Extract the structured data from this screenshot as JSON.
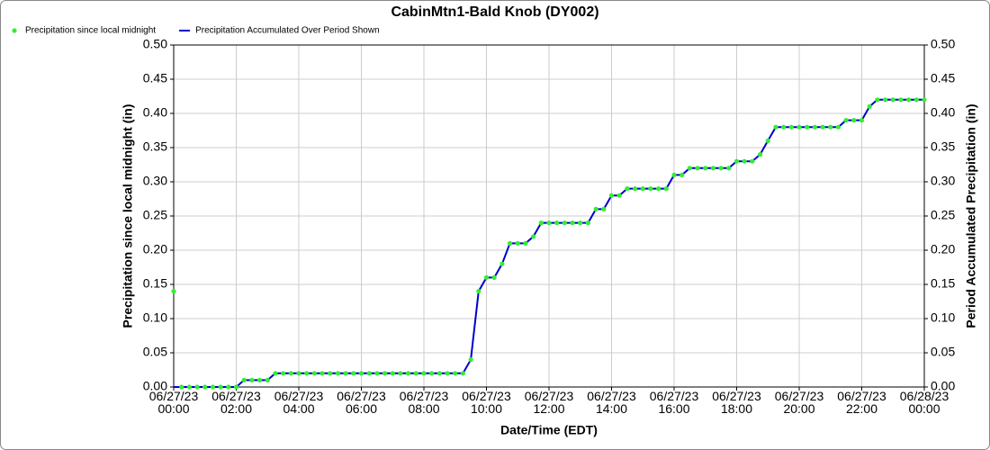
{
  "chart_data": {
    "type": "line",
    "title": "CabinMtn1-Bald Knob (DY002)",
    "xlabel": "Date/Time (EDT)",
    "ylabel": "Precipitation since local midnight (in)",
    "y2label": "Period Accumulated Precipitation (in)",
    "grid": true,
    "legend": "top-left",
    "x": [
      "06/27/23 00:00",
      "06/27/23 00:15",
      "06/27/23 00:30",
      "06/27/23 00:45",
      "06/27/23 01:00",
      "06/27/23 01:15",
      "06/27/23 01:30",
      "06/27/23 01:45",
      "06/27/23 02:00",
      "06/27/23 02:15",
      "06/27/23 02:30",
      "06/27/23 02:45",
      "06/27/23 03:00",
      "06/27/23 03:15",
      "06/27/23 03:30",
      "06/27/23 03:45",
      "06/27/23 04:00",
      "06/27/23 04:15",
      "06/27/23 04:30",
      "06/27/23 04:45",
      "06/27/23 05:00",
      "06/27/23 05:15",
      "06/27/23 05:30",
      "06/27/23 05:45",
      "06/27/23 06:00",
      "06/27/23 06:15",
      "06/27/23 06:30",
      "06/27/23 06:45",
      "06/27/23 07:00",
      "06/27/23 07:15",
      "06/27/23 07:30",
      "06/27/23 07:45",
      "06/27/23 08:00",
      "06/27/23 08:15",
      "06/27/23 08:30",
      "06/27/23 08:45",
      "06/27/23 09:00",
      "06/27/23 09:15",
      "06/27/23 09:30",
      "06/27/23 09:45",
      "06/27/23 10:00",
      "06/27/23 10:15",
      "06/27/23 10:30",
      "06/27/23 10:45",
      "06/27/23 11:00",
      "06/27/23 11:15",
      "06/27/23 11:30",
      "06/27/23 11:45",
      "06/27/23 12:00",
      "06/27/23 12:15",
      "06/27/23 12:30",
      "06/27/23 12:45",
      "06/27/23 13:00",
      "06/27/23 13:15",
      "06/27/23 13:30",
      "06/27/23 13:45",
      "06/27/23 14:00",
      "06/27/23 14:15",
      "06/27/23 14:30",
      "06/27/23 14:45",
      "06/27/23 15:00",
      "06/27/23 15:15",
      "06/27/23 15:30",
      "06/27/23 15:45",
      "06/27/23 16:00",
      "06/27/23 16:15",
      "06/27/23 16:30",
      "06/27/23 16:45",
      "06/27/23 17:00",
      "06/27/23 17:15",
      "06/27/23 17:30",
      "06/27/23 17:45",
      "06/27/23 18:00",
      "06/27/23 18:15",
      "06/27/23 18:30",
      "06/27/23 18:45",
      "06/27/23 19:00",
      "06/27/23 19:15",
      "06/27/23 19:30",
      "06/27/23 19:45",
      "06/27/23 20:00",
      "06/27/23 20:15",
      "06/27/23 20:30",
      "06/27/23 20:45",
      "06/27/23 21:00",
      "06/27/23 21:15",
      "06/27/23 21:30",
      "06/27/23 21:45",
      "06/27/23 22:00",
      "06/27/23 22:15",
      "06/27/23 22:30",
      "06/27/23 22:45",
      "06/27/23 23:00",
      "06/27/23 23:15",
      "06/27/23 23:30",
      "06/27/23 23:45",
      "06/28/23 00:00"
    ],
    "series": [
      {
        "name": "Precipitation since local midnight",
        "type": "scatter",
        "axis": "y",
        "color": "#33ee33",
        "values": [
          0.14,
          0,
          0,
          0,
          0,
          0,
          0,
          0,
          0,
          0.01,
          0.01,
          0.01,
          0.01,
          0.02,
          0.02,
          0.02,
          0.02,
          0.02,
          0.02,
          0.02,
          0.02,
          0.02,
          0.02,
          0.02,
          0.02,
          0.02,
          0.02,
          0.02,
          0.02,
          0.02,
          0.02,
          0.02,
          0.02,
          0.02,
          0.02,
          0.02,
          0.02,
          0.02,
          0.04,
          0.14,
          0.16,
          0.16,
          0.18,
          0.21,
          0.21,
          0.21,
          0.22,
          0.24,
          0.24,
          0.24,
          0.24,
          0.24,
          0.24,
          0.24,
          0.26,
          0.26,
          0.28,
          0.28,
          0.29,
          0.29,
          0.29,
          0.29,
          0.29,
          0.29,
          0.31,
          0.31,
          0.32,
          0.32,
          0.32,
          0.32,
          0.32,
          0.32,
          0.33,
          0.33,
          0.33,
          0.34,
          0.36,
          0.38,
          0.38,
          0.38,
          0.38,
          0.38,
          0.38,
          0.38,
          0.38,
          0.38,
          0.39,
          0.39,
          0.39,
          0.41,
          0.42,
          0.42,
          0.42,
          0.42,
          0.42,
          0.42,
          0.42
        ]
      },
      {
        "name": "Precipitation Accumulated Over Period Shown",
        "type": "line",
        "axis": "y2",
        "color": "#0000cc",
        "values": [
          0,
          0,
          0,
          0,
          0,
          0,
          0,
          0,
          0,
          0.01,
          0.01,
          0.01,
          0.01,
          0.02,
          0.02,
          0.02,
          0.02,
          0.02,
          0.02,
          0.02,
          0.02,
          0.02,
          0.02,
          0.02,
          0.02,
          0.02,
          0.02,
          0.02,
          0.02,
          0.02,
          0.02,
          0.02,
          0.02,
          0.02,
          0.02,
          0.02,
          0.02,
          0.02,
          0.04,
          0.14,
          0.16,
          0.16,
          0.18,
          0.21,
          0.21,
          0.21,
          0.22,
          0.24,
          0.24,
          0.24,
          0.24,
          0.24,
          0.24,
          0.24,
          0.26,
          0.26,
          0.28,
          0.28,
          0.29,
          0.29,
          0.29,
          0.29,
          0.29,
          0.29,
          0.31,
          0.31,
          0.32,
          0.32,
          0.32,
          0.32,
          0.32,
          0.32,
          0.33,
          0.33,
          0.33,
          0.34,
          0.36,
          0.38,
          0.38,
          0.38,
          0.38,
          0.38,
          0.38,
          0.38,
          0.38,
          0.38,
          0.39,
          0.39,
          0.39,
          0.41,
          0.42,
          0.42,
          0.42,
          0.42,
          0.42,
          0.42,
          0.42
        ]
      }
    ],
    "xlim": [
      "06/27/23 00:00",
      "06/28/23 00:00"
    ],
    "xticks": [
      {
        "value": "06/27/23 00:00",
        "label": "06/27/23\n00:00"
      },
      {
        "value": "06/27/23 02:00",
        "label": "06/27/23\n02:00"
      },
      {
        "value": "06/27/23 04:00",
        "label": "06/27/23\n04:00"
      },
      {
        "value": "06/27/23 06:00",
        "label": "06/27/23\n06:00"
      },
      {
        "value": "06/27/23 08:00",
        "label": "06/27/23\n08:00"
      },
      {
        "value": "06/27/23 10:00",
        "label": "06/27/23\n10:00"
      },
      {
        "value": "06/27/23 12:00",
        "label": "06/27/23\n12:00"
      },
      {
        "value": "06/27/23 14:00",
        "label": "06/27/23\n14:00"
      },
      {
        "value": "06/27/23 16:00",
        "label": "06/27/23\n16:00"
      },
      {
        "value": "06/27/23 18:00",
        "label": "06/27/23\n18:00"
      },
      {
        "value": "06/27/23 20:00",
        "label": "06/27/23\n20:00"
      },
      {
        "value": "06/27/23 22:00",
        "label": "06/27/23\n22:00"
      },
      {
        "value": "06/28/23 00:00",
        "label": "06/28/23\n00:00"
      }
    ],
    "ylim": [
      0,
      0.5
    ],
    "yticks": [
      {
        "value": 0,
        "label": "0.00"
      },
      0.05,
      {
        "value": 0.1,
        "label": "0.10"
      },
      0.15,
      {
        "value": 0.2,
        "label": "0.20"
      },
      0.25,
      {
        "value": 0.3,
        "label": "0.30"
      },
      0.35,
      {
        "value": 0.4,
        "label": "0.40"
      },
      0.45,
      {
        "value": 0.5,
        "label": "0.50"
      }
    ],
    "y2lim": [
      0,
      0.5
    ],
    "y2ticks": [
      {
        "value": 0,
        "label": "0.00"
      },
      0.05,
      {
        "value": 0.1,
        "label": "0.10"
      },
      0.15,
      {
        "value": 0.2,
        "label": "0.20"
      },
      0.25,
      {
        "value": 0.3,
        "label": "0.30"
      },
      0.35,
      {
        "value": 0.4,
        "label": "0.40"
      },
      0.45,
      {
        "value": 0.5,
        "label": "0.50"
      }
    ]
  }
}
